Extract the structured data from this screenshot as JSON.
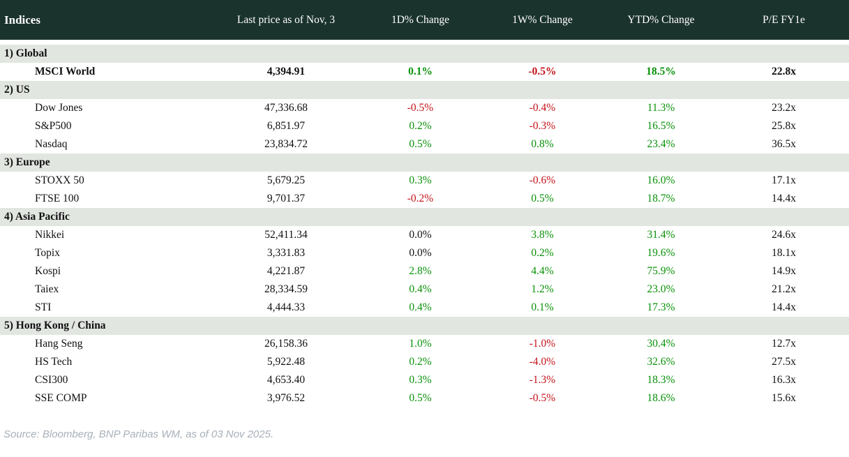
{
  "colors": {
    "header_bg": "#1B332D",
    "section_bg": "#E2E6E1",
    "positive": "#089108",
    "negative": "#C41219",
    "neutral": "#101010"
  },
  "footer": {
    "source": "Source: Bloomberg, BNP Paribas WM, as of 03 Nov 2025."
  },
  "chart_data": {
    "type": "table",
    "title": "Indices",
    "columns": [
      "Indices",
      "Last price as of Nov, 3",
      "1D% Change",
      "1W% Change",
      "YTD% Change",
      "P/E FY1e"
    ],
    "sections": [
      {
        "label": "1) Global",
        "rows": [
          {
            "name": "MSCI World",
            "last_price": "4,394.91",
            "d1": "0.1%",
            "d1_color": "positive",
            "w1": "-0.5%",
            "w1_color": "negative",
            "ytd": "18.5%",
            "ytd_color": "positive",
            "pe": "22.8x",
            "bold": true
          }
        ]
      },
      {
        "label": "2) US",
        "rows": [
          {
            "name": "Dow Jones",
            "last_price": "47,336.68",
            "d1": "-0.5%",
            "d1_color": "negative",
            "w1": "-0.4%",
            "w1_color": "negative",
            "ytd": "11.3%",
            "ytd_color": "positive",
            "pe": "23.2x",
            "bold": false
          },
          {
            "name": "S&P500",
            "last_price": "6,851.97",
            "d1": "0.2%",
            "d1_color": "positive",
            "w1": "-0.3%",
            "w1_color": "negative",
            "ytd": "16.5%",
            "ytd_color": "positive",
            "pe": "25.8x",
            "bold": false
          },
          {
            "name": "Nasdaq",
            "last_price": "23,834.72",
            "d1": "0.5%",
            "d1_color": "positive",
            "w1": "0.8%",
            "w1_color": "positive",
            "ytd": "23.4%",
            "ytd_color": "positive",
            "pe": "36.5x",
            "bold": false
          }
        ]
      },
      {
        "label": "3) Europe",
        "rows": [
          {
            "name": "STOXX 50",
            "last_price": "5,679.25",
            "d1": "0.3%",
            "d1_color": "positive",
            "w1": "-0.6%",
            "w1_color": "negative",
            "ytd": "16.0%",
            "ytd_color": "positive",
            "pe": "17.1x",
            "bold": false
          },
          {
            "name": "FTSE 100",
            "last_price": "9,701.37",
            "d1": "-0.2%",
            "d1_color": "negative",
            "w1": "0.5%",
            "w1_color": "positive",
            "ytd": "18.7%",
            "ytd_color": "positive",
            "pe": "14.4x",
            "bold": false
          }
        ]
      },
      {
        "label": "4) Asia Pacific",
        "rows": [
          {
            "name": "Nikkei",
            "last_price": "52,411.34",
            "d1": "0.0%",
            "d1_color": "neutral",
            "w1": "3.8%",
            "w1_color": "positive",
            "ytd": "31.4%",
            "ytd_color": "positive",
            "pe": "24.6x",
            "bold": false
          },
          {
            "name": "Topix",
            "last_price": "3,331.83",
            "d1": "0.0%",
            "d1_color": "neutral",
            "w1": "0.2%",
            "w1_color": "positive",
            "ytd": "19.6%",
            "ytd_color": "positive",
            "pe": "18.1x",
            "bold": false
          },
          {
            "name": "Kospi",
            "last_price": "4,221.87",
            "d1": "2.8%",
            "d1_color": "positive",
            "w1": "4.4%",
            "w1_color": "positive",
            "ytd": "75.9%",
            "ytd_color": "positive",
            "pe": "14.9x",
            "bold": false
          },
          {
            "name": "Taiex",
            "last_price": "28,334.59",
            "d1": "0.4%",
            "d1_color": "positive",
            "w1": "1.2%",
            "w1_color": "positive",
            "ytd": "23.0%",
            "ytd_color": "positive",
            "pe": "21.2x",
            "bold": false
          },
          {
            "name": "STI",
            "last_price": "4,444.33",
            "d1": "0.4%",
            "d1_color": "positive",
            "w1": "0.1%",
            "w1_color": "positive",
            "ytd": "17.3%",
            "ytd_color": "positive",
            "pe": "14.4x",
            "bold": false
          }
        ]
      },
      {
        "label": "5) Hong Kong / China",
        "rows": [
          {
            "name": "Hang Seng",
            "last_price": "26,158.36",
            "d1": "1.0%",
            "d1_color": "positive",
            "w1": "-1.0%",
            "w1_color": "negative",
            "ytd": "30.4%",
            "ytd_color": "positive",
            "pe": "12.7x",
            "bold": false
          },
          {
            "name": "HS Tech",
            "last_price": "5,922.48",
            "d1": "0.2%",
            "d1_color": "positive",
            "w1": "-4.0%",
            "w1_color": "negative",
            "ytd": "32.6%",
            "ytd_color": "positive",
            "pe": "27.5x",
            "bold": false
          },
          {
            "name": "CSI300",
            "last_price": "4,653.40",
            "d1": "0.3%",
            "d1_color": "positive",
            "w1": "-1.3%",
            "w1_color": "negative",
            "ytd": "18.3%",
            "ytd_color": "positive",
            "pe": "16.3x",
            "bold": false
          },
          {
            "name": "SSE COMP",
            "last_price": "3,976.52",
            "d1": "0.5%",
            "d1_color": "positive",
            "w1": "-0.5%",
            "w1_color": "negative",
            "ytd": "18.6%",
            "ytd_color": "positive",
            "pe": "15.6x",
            "bold": false
          }
        ]
      }
    ]
  }
}
